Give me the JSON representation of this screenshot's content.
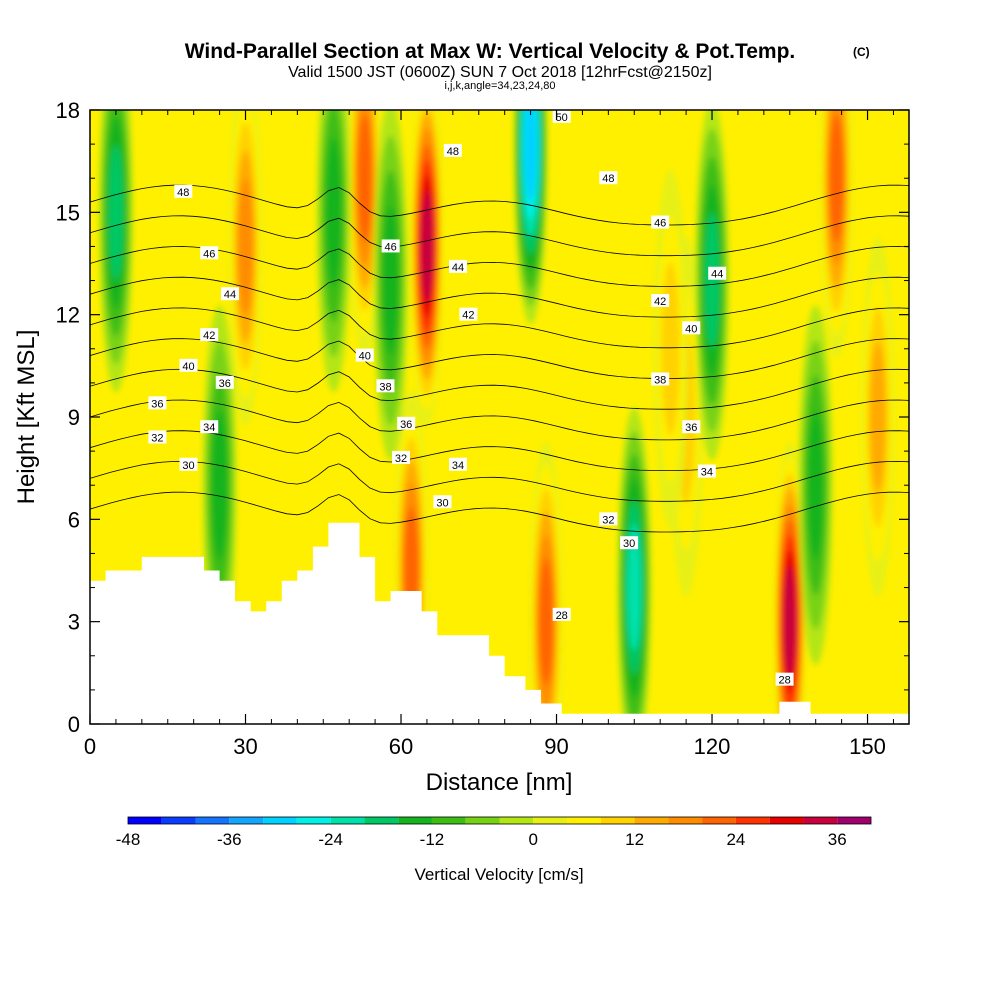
{
  "chart_data": {
    "type": "heatmap",
    "title": "Wind-Parallel Section at Max W: Vertical Velocity & Pot.Temp.",
    "title_mark": "(C)",
    "subtitle": "Valid 1500 JST (0600Z) SUN 7 Oct 2018 [12hrFcst@2150z]",
    "subtitle2": "i,j,k,angle=34,23,24,80",
    "xlabel": "Distance [nm]",
    "ylabel": "Height [Kft MSL]",
    "xlim": [
      0,
      158
    ],
    "ylim": [
      0,
      18
    ],
    "xticks": [
      0,
      30,
      60,
      90,
      120,
      150
    ],
    "yticks": [
      0,
      3,
      6,
      9,
      12,
      15,
      18
    ],
    "colorbar": {
      "label": "Vertical Velocity [cm/s]",
      "ticks": [
        -48,
        -36,
        -24,
        -12,
        0,
        12,
        24,
        36
      ],
      "min": -48,
      "max": 40,
      "step": 4,
      "colors": [
        "#0000ff",
        "#0a3cff",
        "#1473ff",
        "#14a5ff",
        "#00d2ff",
        "#00f0e6",
        "#00e1aa",
        "#00c864",
        "#14b41e",
        "#3cbe14",
        "#78d214",
        "#b4e614",
        "#e6f014",
        "#fff000",
        "#ffd200",
        "#ffaa00",
        "#ff8c00",
        "#ff6400",
        "#ff3200",
        "#e60000",
        "#c8003c",
        "#a0006e",
        "#6e0096"
      ]
    },
    "vertical_velocity_cores": [
      {
        "x": 65,
        "y": 14.0,
        "w": 36
      },
      {
        "x": 53,
        "y": 16.0,
        "w": 24
      },
      {
        "x": 135,
        "y": 3.0,
        "w": 36
      },
      {
        "x": 88,
        "y": 3.0,
        "w": 22
      },
      {
        "x": 62,
        "y": 4.5,
        "w": 24
      },
      {
        "x": 30,
        "y": 14.0,
        "w": 18
      },
      {
        "x": 115,
        "y": 9.0,
        "w": 12
      },
      {
        "x": 112,
        "y": 11.0,
        "w": 12
      },
      {
        "x": 152,
        "y": 9.0,
        "w": 14
      },
      {
        "x": 144,
        "y": 16.0,
        "w": 22
      },
      {
        "x": 85,
        "y": 17.0,
        "w": -30
      },
      {
        "x": 105,
        "y": 4.0,
        "w": -22
      },
      {
        "x": 120,
        "y": 13.0,
        "w": -18
      },
      {
        "x": 47,
        "y": 15.0,
        "w": -16
      },
      {
        "x": 25,
        "y": 7.0,
        "w": -14
      },
      {
        "x": 5,
        "y": 15.0,
        "w": -20
      },
      {
        "x": 140,
        "y": 7.0,
        "w": -16
      },
      {
        "x": 58,
        "y": 13.0,
        "w": -14
      }
    ],
    "theta_contours": [
      30,
      32,
      34,
      36,
      38,
      40,
      42,
      44,
      46,
      48,
      50
    ],
    "theta_labels": [
      {
        "text": "48",
        "x": 18,
        "y": 15.6
      },
      {
        "text": "46",
        "x": 23,
        "y": 13.8
      },
      {
        "text": "44",
        "x": 27,
        "y": 12.6
      },
      {
        "text": "42",
        "x": 23,
        "y": 11.4
      },
      {
        "text": "40",
        "x": 19,
        "y": 10.5
      },
      {
        "text": "36",
        "x": 26,
        "y": 10.0
      },
      {
        "text": "36",
        "x": 13,
        "y": 9.4
      },
      {
        "text": "34",
        "x": 23,
        "y": 8.7
      },
      {
        "text": "32",
        "x": 13,
        "y": 8.4
      },
      {
        "text": "30",
        "x": 19,
        "y": 7.6
      },
      {
        "text": "46",
        "x": 58,
        "y": 14.0
      },
      {
        "text": "40",
        "x": 53,
        "y": 10.8
      },
      {
        "text": "38",
        "x": 57,
        "y": 9.9
      },
      {
        "text": "36",
        "x": 61,
        "y": 8.8
      },
      {
        "text": "32",
        "x": 60,
        "y": 7.8
      },
      {
        "text": "30",
        "x": 68,
        "y": 6.5
      },
      {
        "text": "48",
        "x": 70,
        "y": 16.8
      },
      {
        "text": "44",
        "x": 71,
        "y": 13.4
      },
      {
        "text": "42",
        "x": 73,
        "y": 12.0
      },
      {
        "text": "34",
        "x": 71,
        "y": 7.6
      },
      {
        "text": "50",
        "x": 91,
        "y": 17.8
      },
      {
        "text": "48",
        "x": 100,
        "y": 16.0
      },
      {
        "text": "46",
        "x": 110,
        "y": 14.7
      },
      {
        "text": "42",
        "x": 110,
        "y": 12.4
      },
      {
        "text": "40",
        "x": 116,
        "y": 11.6
      },
      {
        "text": "38",
        "x": 110,
        "y": 10.1
      },
      {
        "text": "36",
        "x": 116,
        "y": 8.7
      },
      {
        "text": "34",
        "x": 119,
        "y": 7.4
      },
      {
        "text": "44",
        "x": 121,
        "y": 13.2
      },
      {
        "text": "32",
        "x": 100,
        "y": 6.0
      },
      {
        "text": "30",
        "x": 104,
        "y": 5.3
      },
      {
        "text": "28",
        "x": 91,
        "y": 3.2
      },
      {
        "text": "28",
        "x": 134,
        "y": 1.3
      }
    ],
    "terrain": [
      [
        0,
        4.2
      ],
      [
        3,
        4.2
      ],
      [
        3,
        4.5
      ],
      [
        10,
        4.5
      ],
      [
        10,
        4.9
      ],
      [
        22,
        4.9
      ],
      [
        22,
        4.5
      ],
      [
        25,
        4.5
      ],
      [
        25,
        4.2
      ],
      [
        28,
        4.2
      ],
      [
        28,
        3.6
      ],
      [
        31,
        3.6
      ],
      [
        31,
        3.3
      ],
      [
        34,
        3.3
      ],
      [
        34,
        3.6
      ],
      [
        37,
        3.6
      ],
      [
        37,
        4.2
      ],
      [
        40,
        4.2
      ],
      [
        40,
        4.5
      ],
      [
        43,
        4.5
      ],
      [
        43,
        5.2
      ],
      [
        46,
        5.2
      ],
      [
        46,
        5.9
      ],
      [
        52,
        5.9
      ],
      [
        52,
        4.9
      ],
      [
        55,
        4.9
      ],
      [
        55,
        3.6
      ],
      [
        58,
        3.6
      ],
      [
        58,
        3.9
      ],
      [
        64,
        3.9
      ],
      [
        64,
        3.3
      ],
      [
        67,
        3.3
      ],
      [
        67,
        2.6
      ],
      [
        77,
        2.6
      ],
      [
        77,
        2.0
      ],
      [
        80,
        2.0
      ],
      [
        80,
        1.4
      ],
      [
        84,
        1.4
      ],
      [
        84,
        1.0
      ],
      [
        87,
        1.0
      ],
      [
        87,
        0.6
      ],
      [
        91,
        0.6
      ],
      [
        91,
        0.3
      ],
      [
        133,
        0.3
      ],
      [
        133,
        0.65
      ],
      [
        139,
        0.65
      ],
      [
        139,
        0.3
      ],
      [
        158,
        0.3
      ],
      [
        158,
        0
      ],
      [
        0,
        0
      ]
    ]
  }
}
